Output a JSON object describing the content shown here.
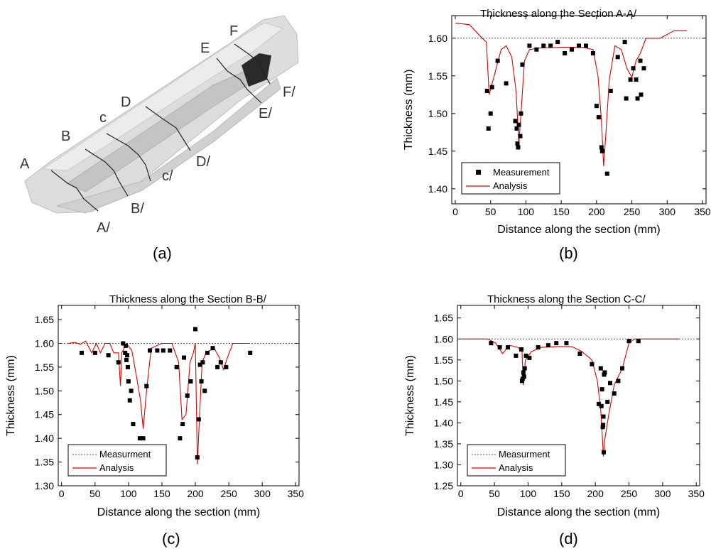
{
  "panel_labels": [
    "(a)",
    "(b)",
    "(c)",
    "(d)"
  ],
  "panel_a": {
    "section_labels": [
      "A",
      "A/",
      "B",
      "B/",
      "c",
      "c/",
      "D",
      "D/",
      "E",
      "E/",
      "F",
      "F/"
    ]
  },
  "colors": {
    "analysis": "#e00000",
    "measurement": "#000000",
    "nominal_line": "#555555",
    "part_fill": "#dcdcdc"
  },
  "chart_data": [
    {
      "id": "b",
      "type": "scatter",
      "title": "Thickness along the Section A-A/",
      "xlabel": "Distance along the section (mm)",
      "ylabel": "Thickness (mm)",
      "xlim": [
        -5,
        355
      ],
      "ylim": [
        1.38,
        1.63
      ],
      "xticks": [
        0,
        50,
        100,
        150,
        200,
        250,
        300,
        350
      ],
      "yticks": [
        1.4,
        1.45,
        1.5,
        1.55,
        1.6
      ],
      "ytick_labels": [
        "1.40",
        "1.45",
        "1.50",
        "1.55",
        "1.60"
      ],
      "nominal": 1.6,
      "legend": {
        "position": "bottom-left",
        "entries": [
          "Measurement",
          "Analysis"
        ]
      },
      "series": [
        {
          "name": "Measurement",
          "marker": "square",
          "points": [
            [
              45,
              1.53
            ],
            [
              47,
              1.48
            ],
            [
              50,
              1.5
            ],
            [
              52,
              1.535
            ],
            [
              60,
              1.57
            ],
            [
              72,
              1.54
            ],
            [
              85,
              1.49
            ],
            [
              87,
              1.48
            ],
            [
              88,
              1.46
            ],
            [
              89,
              1.455
            ],
            [
              90,
              1.485
            ],
            [
              92,
              1.47
            ],
            [
              93,
              1.5
            ],
            [
              95,
              1.565
            ],
            [
              105,
              1.59
            ],
            [
              115,
              1.585
            ],
            [
              125,
              1.59
            ],
            [
              135,
              1.59
            ],
            [
              145,
              1.595
            ],
            [
              155,
              1.58
            ],
            [
              165,
              1.585
            ],
            [
              175,
              1.59
            ],
            [
              185,
              1.59
            ],
            [
              195,
              1.58
            ],
            [
              200,
              1.51
            ],
            [
              203,
              1.495
            ],
            [
              207,
              1.455
            ],
            [
              208,
              1.45
            ],
            [
              215,
              1.42
            ],
            [
              220,
              1.53
            ],
            [
              230,
              1.575
            ],
            [
              240,
              1.595
            ],
            [
              242,
              1.52
            ],
            [
              248,
              1.545
            ],
            [
              252,
              1.56
            ],
            [
              256,
              1.545
            ],
            [
              258,
              1.52
            ],
            [
              262,
              1.57
            ],
            [
              263,
              1.525
            ],
            [
              267,
              1.56
            ]
          ]
        },
        {
          "name": "Analysis",
          "marker": "line",
          "points": [
            [
              0,
              1.62
            ],
            [
              20,
              1.618
            ],
            [
              38,
              1.6
            ],
            [
              44,
              1.595
            ],
            [
              48,
              1.525
            ],
            [
              55,
              1.55
            ],
            [
              65,
              1.585
            ],
            [
              72,
              1.59
            ],
            [
              80,
              1.575
            ],
            [
              86,
              1.53
            ],
            [
              90,
              1.46
            ],
            [
              93,
              1.5
            ],
            [
              98,
              1.57
            ],
            [
              105,
              1.585
            ],
            [
              120,
              1.587
            ],
            [
              150,
              1.588
            ],
            [
              180,
              1.588
            ],
            [
              195,
              1.585
            ],
            [
              202,
              1.55
            ],
            [
              207,
              1.49
            ],
            [
              210,
              1.43
            ],
            [
              213,
              1.47
            ],
            [
              218,
              1.545
            ],
            [
              226,
              1.59
            ],
            [
              235,
              1.585
            ],
            [
              243,
              1.56
            ],
            [
              250,
              1.548
            ],
            [
              256,
              1.57
            ],
            [
              262,
              1.58
            ],
            [
              270,
              1.6
            ],
            [
              290,
              1.6
            ],
            [
              310,
              1.61
            ],
            [
              328,
              1.61
            ]
          ]
        }
      ]
    },
    {
      "id": "c",
      "type": "scatter",
      "title": "Thickness along the Section B-B/",
      "xlabel": "Distance along the section (mm)",
      "ylabel": "Thickness (mm)",
      "xlim": [
        -5,
        355
      ],
      "ylim": [
        1.3,
        1.68
      ],
      "xticks": [
        0,
        50,
        100,
        150,
        200,
        250,
        300,
        350
      ],
      "yticks": [
        1.3,
        1.35,
        1.4,
        1.45,
        1.5,
        1.55,
        1.6,
        1.65
      ],
      "ytick_labels": [
        "1.30",
        "1.35",
        "1.40",
        "1.45",
        "1.50",
        "1.55",
        "1.60",
        "1.65"
      ],
      "nominal": 1.6,
      "legend": {
        "position": "bottom-left",
        "entries": [
          "Measurment",
          "Analysis"
        ]
      },
      "series": [
        {
          "name": "Measurment",
          "marker": "square",
          "points": [
            [
              30,
              1.58
            ],
            [
              50,
              1.58
            ],
            [
              70,
              1.575
            ],
            [
              85,
              1.56
            ],
            [
              92,
              1.6
            ],
            [
              95,
              1.58
            ],
            [
              96,
              1.595
            ],
            [
              97,
              1.565
            ],
            [
              98,
              1.575
            ],
            [
              99,
              1.55
            ],
            [
              100,
              1.52
            ],
            [
              102,
              1.48
            ],
            [
              104,
              1.5
            ],
            [
              107,
              1.43
            ],
            [
              117,
              1.4
            ],
            [
              122,
              1.4
            ],
            [
              127,
              1.51
            ],
            [
              132,
              1.585
            ],
            [
              143,
              1.585
            ],
            [
              152,
              1.585
            ],
            [
              162,
              1.585
            ],
            [
              172,
              1.55
            ],
            [
              177,
              1.4
            ],
            [
              181,
              1.43
            ],
            [
              183,
              1.57
            ],
            [
              188,
              1.49
            ],
            [
              193,
              1.52
            ],
            [
              200,
              1.63
            ],
            [
              203,
              1.36
            ],
            [
              205,
              1.44
            ],
            [
              207,
              1.555
            ],
            [
              209,
              1.52
            ],
            [
              211,
              1.56
            ],
            [
              214,
              1.5
            ],
            [
              218,
              1.58
            ],
            [
              226,
              1.59
            ],
            [
              233,
              1.55
            ],
            [
              238,
              1.56
            ],
            [
              246,
              1.55
            ],
            [
              282,
              1.58
            ]
          ]
        },
        {
          "name": "Analysis",
          "marker": "line",
          "points": [
            [
              10,
              1.6
            ],
            [
              20,
              1.602
            ],
            [
              28,
              1.598
            ],
            [
              36,
              1.605
            ],
            [
              45,
              1.58
            ],
            [
              52,
              1.6
            ],
            [
              58,
              1.58
            ],
            [
              65,
              1.6
            ],
            [
              72,
              1.6
            ],
            [
              78,
              1.58
            ],
            [
              85,
              1.58
            ],
            [
              88,
              1.51
            ],
            [
              90,
              1.58
            ],
            [
              97,
              1.6
            ],
            [
              105,
              1.585
            ],
            [
              112,
              1.53
            ],
            [
              118,
              1.48
            ],
            [
              122,
              1.42
            ],
            [
              127,
              1.5
            ],
            [
              134,
              1.59
            ],
            [
              150,
              1.6
            ],
            [
              165,
              1.6
            ],
            [
              175,
              1.56
            ],
            [
              180,
              1.44
            ],
            [
              186,
              1.45
            ],
            [
              192,
              1.56
            ],
            [
              197,
              1.58
            ],
            [
              200,
              1.6
            ],
            [
              203,
              1.345
            ],
            [
              206,
              1.44
            ],
            [
              210,
              1.56
            ],
            [
              216,
              1.58
            ],
            [
              228,
              1.59
            ],
            [
              236,
              1.57
            ],
            [
              242,
              1.545
            ],
            [
              248,
              1.57
            ],
            [
              256,
              1.6
            ],
            [
              280,
              1.6
            ]
          ]
        }
      ]
    },
    {
      "id": "d",
      "type": "scatter",
      "title": "Thickness along the Section C-C/",
      "xlabel": "Distance along the section (mm)",
      "ylabel": "Thickness (mm)",
      "xlim": [
        -5,
        355
      ],
      "ylim": [
        1.25,
        1.68
      ],
      "xticks": [
        0,
        50,
        100,
        150,
        200,
        250,
        300,
        350
      ],
      "yticks": [
        1.25,
        1.3,
        1.35,
        1.4,
        1.45,
        1.5,
        1.55,
        1.6,
        1.65
      ],
      "ytick_labels": [
        "1.25",
        "1.30",
        "1.35",
        "1.40",
        "1.45",
        "1.50",
        "1.55",
        "1.60",
        "1.65"
      ],
      "nominal": 1.6,
      "legend": {
        "position": "bottom-left",
        "entries": [
          "Measurment",
          "Analysis"
        ]
      },
      "series": [
        {
          "name": "Measurment",
          "marker": "square",
          "points": [
            [
              45,
              1.59
            ],
            [
              58,
              1.58
            ],
            [
              70,
              1.58
            ],
            [
              82,
              1.56
            ],
            [
              90,
              1.575
            ],
            [
              91,
              1.5
            ],
            [
              92,
              1.505
            ],
            [
              93,
              1.52
            ],
            [
              94,
              1.51
            ],
            [
              95,
              1.53
            ],
            [
              97,
              1.56
            ],
            [
              102,
              1.555
            ],
            [
              115,
              1.58
            ],
            [
              130,
              1.585
            ],
            [
              142,
              1.59
            ],
            [
              157,
              1.59
            ],
            [
              177,
              1.565
            ],
            [
              195,
              1.54
            ],
            [
              205,
              1.445
            ],
            [
              208,
              1.53
            ],
            [
              209,
              1.44
            ],
            [
              210,
              1.48
            ],
            [
              211,
              1.39
            ],
            [
              211.5,
              1.395
            ],
            [
              212,
              1.415
            ],
            [
              212.5,
              1.33
            ],
            [
              213,
              1.515
            ],
            [
              214,
              1.52
            ],
            [
              218,
              1.45
            ],
            [
              222,
              1.495
            ],
            [
              228,
              1.47
            ],
            [
              234,
              1.5
            ],
            [
              240,
              1.53
            ],
            [
              250,
              1.595
            ],
            [
              264,
              1.595
            ]
          ]
        },
        {
          "name": "Analysis",
          "marker": "line",
          "points": [
            [
              0,
              1.6
            ],
            [
              40,
              1.6
            ],
            [
              52,
              1.59
            ],
            [
              62,
              1.565
            ],
            [
              72,
              1.585
            ],
            [
              85,
              1.58
            ],
            [
              91,
              1.57
            ],
            [
              93,
              1.49
            ],
            [
              96,
              1.55
            ],
            [
              105,
              1.57
            ],
            [
              120,
              1.58
            ],
            [
              145,
              1.582
            ],
            [
              165,
              1.582
            ],
            [
              180,
              1.57
            ],
            [
              195,
              1.55
            ],
            [
              203,
              1.5
            ],
            [
              208,
              1.43
            ],
            [
              211,
              1.35
            ],
            [
              212,
              1.32
            ],
            [
              214,
              1.36
            ],
            [
              220,
              1.42
            ],
            [
              228,
              1.49
            ],
            [
              240,
              1.53
            ],
            [
              250,
              1.59
            ],
            [
              258,
              1.6
            ],
            [
              290,
              1.6
            ],
            [
              325,
              1.6
            ]
          ]
        }
      ]
    }
  ]
}
